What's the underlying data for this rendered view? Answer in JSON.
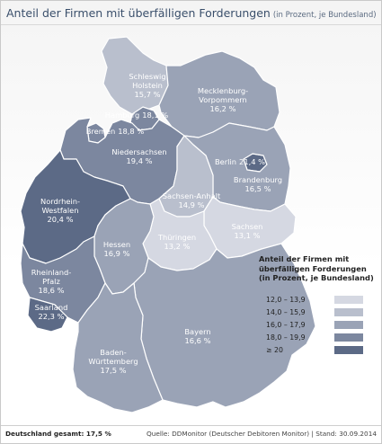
{
  "header": {
    "title": "Anteil der Firmen mit überfälligen Forderungen",
    "subtitle": "(in Prozent, je Bundesland)"
  },
  "colors": {
    "c1": "#d5d8e2",
    "c2": "#b9bfcd",
    "c3": "#9aa3b6",
    "c4": "#7c879f",
    "c5": "#5c6a86",
    "border": "#ffffff"
  },
  "states": [
    {
      "name": "Schleswig\nHolstein",
      "value": "15,7 %",
      "level": 2
    },
    {
      "name": "Mecklenburg-\nVorpommern",
      "value": "16,2 %",
      "level": 3
    },
    {
      "name": "Hamburg",
      "value": "18,1 %",
      "level": 4
    },
    {
      "name": "Bremen",
      "value": "18,8 %",
      "level": 4
    },
    {
      "name": "Niedersachsen",
      "value": "19,4 %",
      "level": 4
    },
    {
      "name": "Berlin",
      "value": "21,4 %",
      "level": 5
    },
    {
      "name": "Brandenburg",
      "value": "16,5 %",
      "level": 3
    },
    {
      "name": "Sachsen-Anhalt",
      "value": "14,9 %",
      "level": 2
    },
    {
      "name": "Nordrhein-\nWestfalen",
      "value": "20,4 %",
      "level": 5
    },
    {
      "name": "Sachsen",
      "value": "13,1 %",
      "level": 1
    },
    {
      "name": "Thüringen",
      "value": "13,2 %",
      "level": 1
    },
    {
      "name": "Hessen",
      "value": "16,9 %",
      "level": 3
    },
    {
      "name": "Rheinland-\nPfalz",
      "value": "18,6 %",
      "level": 4
    },
    {
      "name": "Saarland",
      "value": "22,3 %",
      "level": 5
    },
    {
      "name": "Bayern",
      "value": "16,6 %",
      "level": 3
    },
    {
      "name": "Baden-\nWürttemberg",
      "value": "17,5 %",
      "level": 3
    }
  ],
  "legend": {
    "title_lines": [
      "Anteil der Firmen mit",
      "überfälligen Forderungen",
      "(in Prozent, je Bundesland)"
    ],
    "items": [
      {
        "range": "12,0  –  13,9",
        "level": 1
      },
      {
        "range": "14,0  –  15,9",
        "level": 2
      },
      {
        "range": "16,0  –  17,9",
        "level": 3
      },
      {
        "range": "18,0  –  19,9",
        "level": 4
      },
      {
        "range": "≥  20",
        "level": 5
      }
    ]
  },
  "footer": {
    "left": "Deutschland gesamt: 17,5 %",
    "right": "Quelle: DDMonitor (Deutscher Debitoren Monitor) | Stand: 30.09.2014"
  }
}
